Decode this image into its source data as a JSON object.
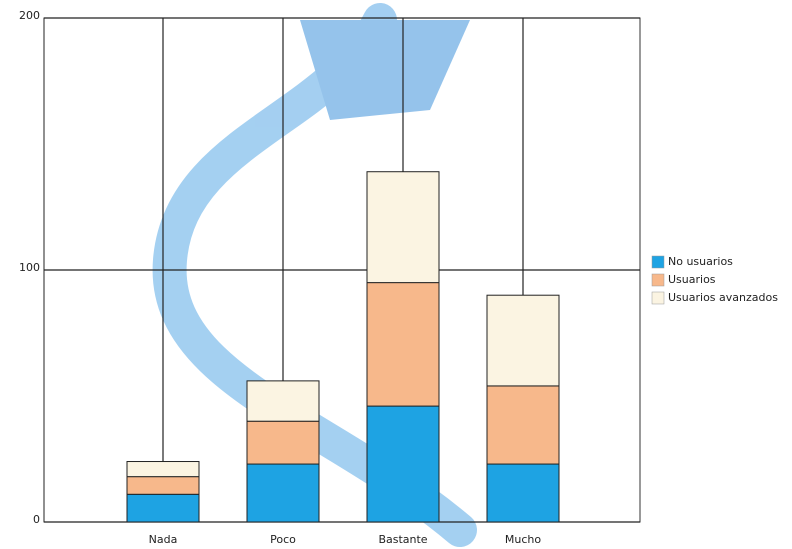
{
  "chart_data": {
    "type": "stacked_bar",
    "categories": [
      "Nada",
      "Poco",
      "Bastante",
      "Mucho"
    ],
    "series": [
      {
        "name": "No usuarios",
        "color": "#1ea3e3",
        "values": [
          11,
          23,
          46,
          23
        ]
      },
      {
        "name": "Usuarios",
        "color": "#f7b88b",
        "values": [
          7,
          17,
          49,
          31
        ]
      },
      {
        "name": "Usuarios avanzados",
        "color": "#fbf4e2",
        "values": [
          6,
          16,
          44,
          36
        ]
      }
    ],
    "ylim": [
      0,
      200
    ],
    "yticks": [
      0,
      100,
      200
    ],
    "grid": true,
    "legend": "right"
  }
}
